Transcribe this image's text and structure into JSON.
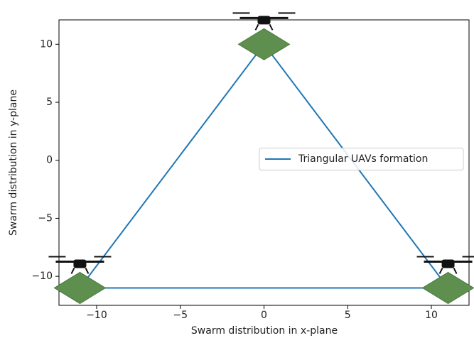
{
  "chart_data": {
    "type": "line",
    "x_label": "Swarm distribution in x-plane",
    "y_label": "Swarm distribution in y-plane",
    "x": [
      -11,
      0,
      11,
      -11
    ],
    "series": [
      {
        "name": "Triangular UAVs formation",
        "color": "#1f77b4",
        "values": [
          -11,
          10,
          -11,
          -11
        ]
      }
    ],
    "xlim": [
      -12.25,
      12.25
    ],
    "ylim": [
      -12.5,
      12.1
    ],
    "xticks": [
      {
        "value": -10,
        "label": "−10"
      },
      {
        "value": -5,
        "label": "−5"
      },
      0,
      5,
      10
    ],
    "yticks": [
      {
        "value": -10,
        "label": "−10"
      },
      {
        "value": -5,
        "label": "−5"
      },
      0,
      5,
      10
    ],
    "legend": "center right",
    "grid": false
  }
}
